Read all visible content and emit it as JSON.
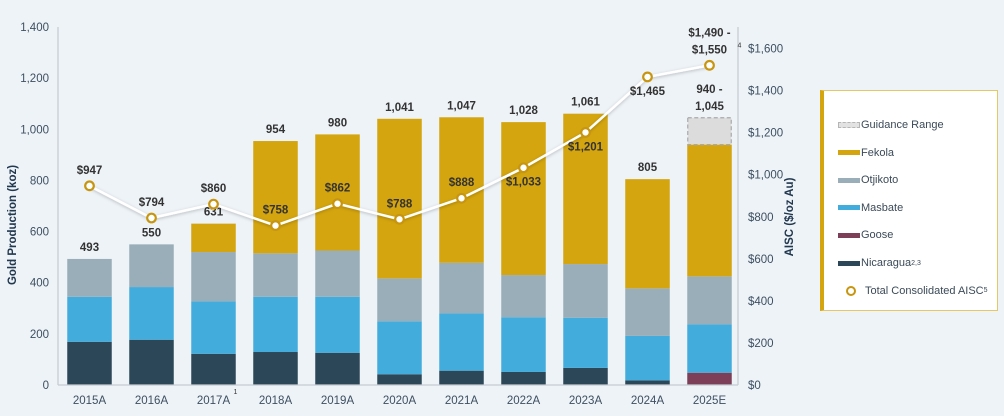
{
  "chart_data": {
    "type": "bar",
    "subtype": "stacked bar with line overlay (secondary axis)",
    "categories": [
      "2015A",
      "2016A",
      "2017A",
      "2018A",
      "2019A",
      "2020A",
      "2021A",
      "2022A",
      "2023A",
      "2024A",
      "2025E"
    ],
    "category_superscripts": {
      "2017A": "1"
    },
    "series": [
      {
        "name": "Nicaragua",
        "superscript": "2,3",
        "color": "#2c4757",
        "values": [
          169,
          177,
          122,
          129,
          126,
          42,
          56,
          51,
          67,
          18,
          0
        ]
      },
      {
        "name": "Goose",
        "superscript": "",
        "color": "#7d3f57",
        "values": [
          0,
          0,
          0,
          0,
          0,
          0,
          0,
          0,
          0,
          0,
          48
        ]
      },
      {
        "name": "Masbate",
        "superscript": "",
        "color": "#42acdc",
        "values": [
          176,
          206,
          205,
          216,
          219,
          207,
          224,
          214,
          196,
          174,
          189
        ]
      },
      {
        "name": "Otjikoto",
        "superscript": "",
        "color": "#9aaeb9",
        "values": [
          148,
          167,
          193,
          170,
          181,
          168,
          198,
          165,
          210,
          186,
          188
        ]
      },
      {
        "name": "Fekola",
        "superscript": "",
        "color": "#d4a50e",
        "values": [
          0,
          0,
          111,
          439,
          454,
          624,
          569,
          598,
          588,
          427,
          515
        ]
      }
    ],
    "guidance_range": {
      "name": "Guidance Range",
      "category": "2025E",
      "low": 940,
      "high": 1045,
      "color": "#dcdcdc"
    },
    "totals_labels": [
      "493",
      "550",
      "631",
      "954",
      "980",
      "1,041",
      "1,047",
      "1,028",
      "1,061",
      "805",
      "940 -\n1,045"
    ],
    "line_series": {
      "name": "Total Consolidated AISC",
      "superscript": "5",
      "axis": "right",
      "color": "#ffffff",
      "marker_color": "#c7950f",
      "values": [
        947,
        794,
        860,
        758,
        862,
        788,
        888,
        1033,
        1201,
        1465,
        1520
      ],
      "labels": [
        "$947",
        "$794",
        "$860",
        "$758",
        "$862",
        "$788",
        "$888",
        "$1,033",
        "$1,201",
        "$1,465",
        "$1,490 -\n$1,550"
      ],
      "label_superscripts": {
        "10": "4"
      },
      "range_2025E": [
        1490,
        1550
      ]
    },
    "ylabel": "Gold Production (koz)",
    "ylim": [
      0,
      1400
    ],
    "yticks": [
      "0",
      "200",
      "400",
      "600",
      "800",
      "1,000",
      "1,200",
      "1,400"
    ],
    "y2label": "AISC ($/oz Au)",
    "y2lim": [
      0,
      1600
    ],
    "y2ticks": [
      "$0",
      "$200",
      "$400",
      "$600",
      "$800",
      "$1,000",
      "$1,200",
      "$1,400",
      "$1,600"
    ],
    "grid": false,
    "legend_position": "right"
  },
  "legend": {
    "items": [
      {
        "label": "Guidance Range",
        "sup": "",
        "kind": "dash",
        "color": "#dcdcdc"
      },
      {
        "label": "Fekola",
        "sup": "",
        "kind": "swatch",
        "color": "#d4a50e"
      },
      {
        "label": "Otjikoto",
        "sup": "",
        "kind": "swatch",
        "color": "#9aaeb9"
      },
      {
        "label": "Masbate",
        "sup": "",
        "kind": "swatch",
        "color": "#42acdc"
      },
      {
        "label": "Goose",
        "sup": "",
        "kind": "swatch",
        "color": "#7d3f57"
      },
      {
        "label": "Nicaragua",
        "sup": "2,3",
        "kind": "swatch",
        "color": "#2c4757"
      },
      {
        "label": "Total Consolidated AISC",
        "sup": "5",
        "kind": "circle",
        "color": "#c7950f"
      }
    ]
  }
}
